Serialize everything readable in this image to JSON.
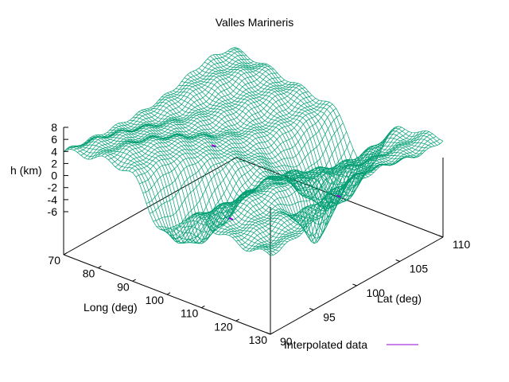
{
  "chart_data": {
    "type": "surface",
    "title": "Valles Marineris",
    "xlabel": "Long (deg)",
    "ylabel": "Lat (deg)",
    "zlabel": "h (km)",
    "xlim": [
      70,
      130
    ],
    "ylim": [
      90,
      110
    ],
    "zlim": [
      -6,
      8
    ],
    "x_ticks": [
      "70",
      "80",
      "90",
      "100",
      "110",
      "120",
      "130"
    ],
    "y_ticks": [
      "90",
      "95",
      "100",
      "105",
      "110"
    ],
    "z_ticks": [
      "8",
      "6",
      "4",
      "2",
      "0",
      "-2",
      "-4",
      "-6"
    ],
    "legend": "bottom-right",
    "series": [
      {
        "name": "Interpolated data",
        "color": "#9400d3"
      }
    ],
    "surface_color": "#009e73",
    "grid": false
  }
}
